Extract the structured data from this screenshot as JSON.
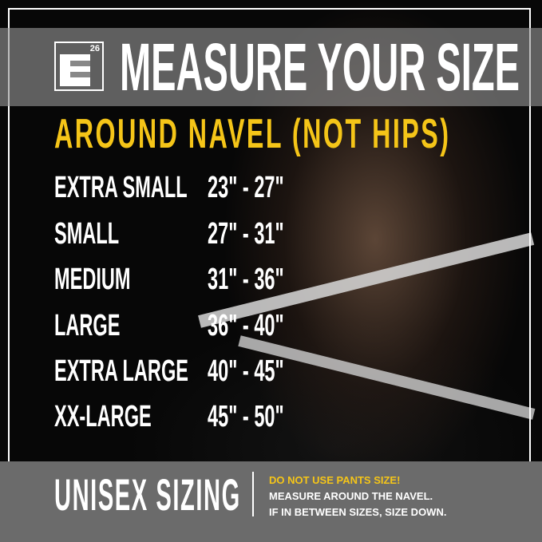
{
  "header": {
    "logo_text": "26",
    "title": "MEASURE YOUR SIZE"
  },
  "subtitle": "AROUND NAVEL (NOT HIPS)",
  "sizes": [
    {
      "label": "EXTRA SMALL",
      "range": "23\" - 27\""
    },
    {
      "label": "SMALL",
      "range": "27\" - 31\""
    },
    {
      "label": "MEDIUM",
      "range": "31\" - 36\""
    },
    {
      "label": "LARGE",
      "range": "36\" - 40\""
    },
    {
      "label": "EXTRA LARGE",
      "range": "40\" - 45\""
    },
    {
      "label": "XX-LARGE",
      "range": "45\" - 50\""
    }
  ],
  "footer": {
    "heading": "UNISEX SIZING",
    "warning": "DO NOT USE PANTS SIZE!",
    "line1": "MEASURE AROUND THE NAVEL.",
    "line2": "IF IN BETWEEN SIZES, SIZE DOWN."
  },
  "colors": {
    "accent": "#f5c518",
    "band": "#6b6b6b",
    "background": "#070707"
  }
}
